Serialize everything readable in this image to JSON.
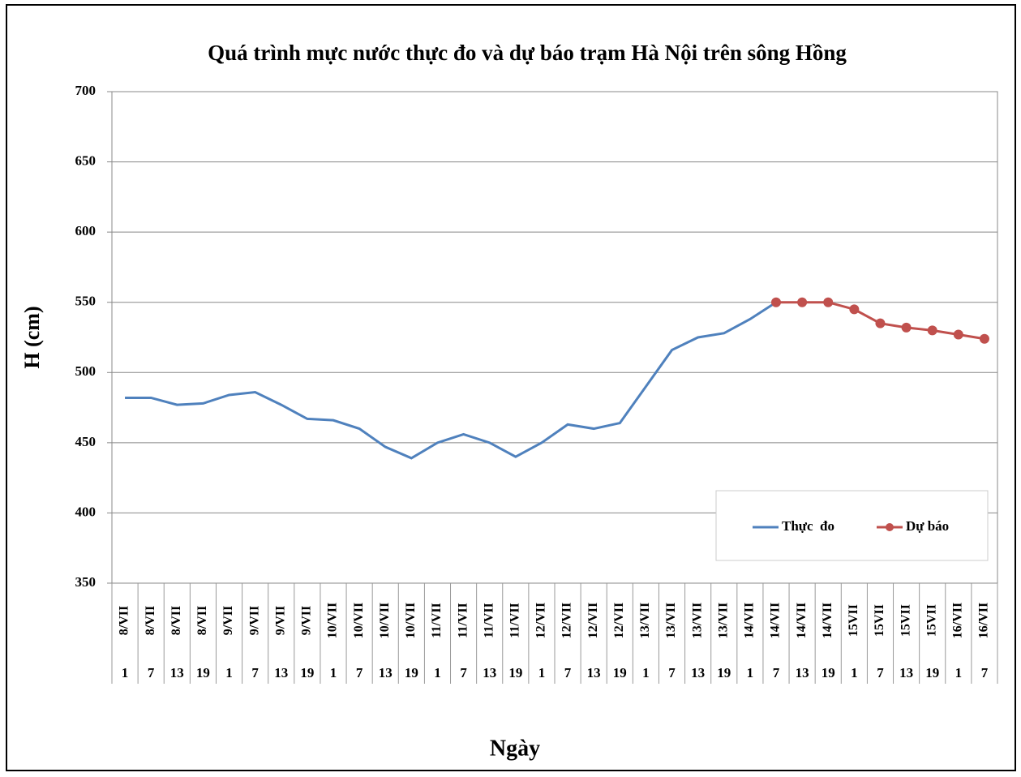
{
  "chart_data": {
    "type": "line",
    "title": "Quá trình mực nước thực đo và dự báo trạm Hà Nội trên sông Hồng",
    "y_label": "H (cm)",
    "x_label": "Ngày",
    "categories": [
      "8/VII",
      "8/VII",
      "8/VII",
      "8/VII",
      "9/VII",
      "9/VII",
      "9/VII",
      "9/VII",
      "10/VII",
      "10/VII",
      "10/VII",
      "10/VII",
      "11/VII",
      "11/VII",
      "11/VII",
      "11/VII",
      "12/VII",
      "12/VII",
      "12/VII",
      "12/VII",
      "13/VII",
      "13/VII",
      "13/VII",
      "13/VII",
      "14/VII",
      "14/VII",
      "14/VII",
      "14/VII",
      "15VII",
      "15VII",
      "15VII",
      "15VII",
      "16/VII",
      "16/VII"
    ],
    "hours": [
      "1",
      "7",
      "13",
      "19",
      "1",
      "7",
      "13",
      "19",
      "1",
      "7",
      "13",
      "19",
      "1",
      "7",
      "13",
      "19",
      "1",
      "7",
      "13",
      "19",
      "1",
      "7",
      "13",
      "19",
      "1",
      "7",
      "13",
      "19",
      "1",
      "7",
      "13",
      "19",
      "1",
      "7"
    ],
    "series": [
      {
        "name": "Thực  đo",
        "color": "#4f81bd",
        "markers": false,
        "values": [
          482,
          482,
          477,
          478,
          484,
          486,
          477,
          467,
          466,
          460,
          447,
          439,
          450,
          456,
          450,
          440,
          450,
          463,
          460,
          464,
          490,
          516,
          525,
          528,
          538,
          550,
          null,
          null,
          null,
          null,
          null,
          null,
          null,
          null
        ]
      },
      {
        "name": "Dự báo",
        "color": "#c0504d",
        "markers": true,
        "values": [
          null,
          null,
          null,
          null,
          null,
          null,
          null,
          null,
          null,
          null,
          null,
          null,
          null,
          null,
          null,
          null,
          null,
          null,
          null,
          null,
          null,
          null,
          null,
          null,
          null,
          550,
          550,
          550,
          545,
          535,
          532,
          530,
          527,
          524
        ]
      }
    ],
    "ylim": [
      350,
      700
    ],
    "yticks": [
      350,
      400,
      450,
      500,
      550,
      600,
      650,
      700
    ],
    "grid": true,
    "legend": "lower right"
  }
}
